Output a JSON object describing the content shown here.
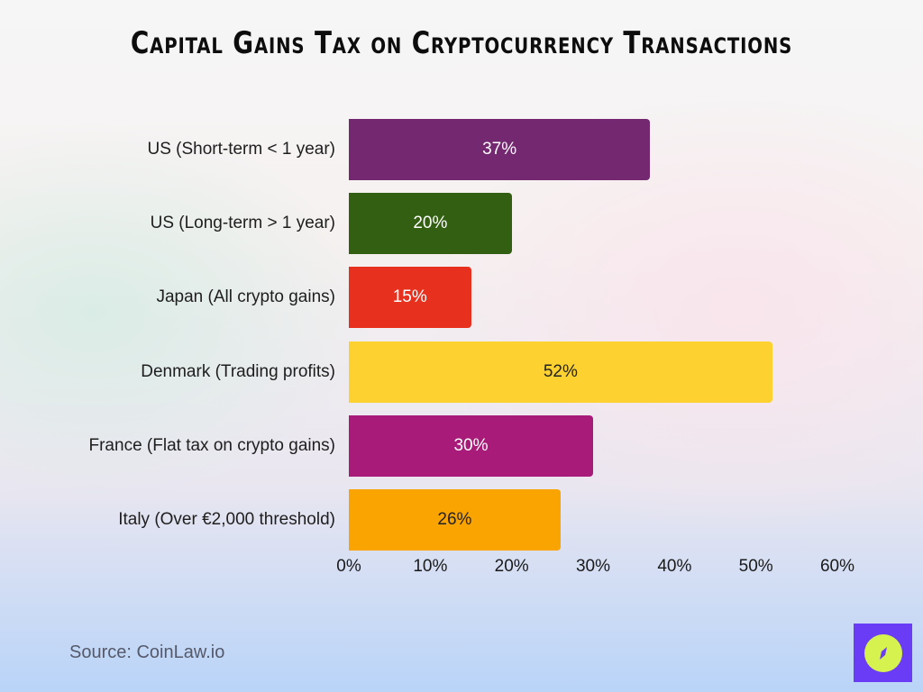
{
  "title": "Capital Gains Tax on Cryptocurrency Transactions",
  "source": "Source: CoinLaw.io",
  "logo_icon": "compass-icon",
  "chart_data": {
    "type": "bar",
    "orientation": "horizontal",
    "title": "Capital Gains Tax on Cryptocurrency Transactions",
    "xlabel": "",
    "ylabel": "",
    "categories": [
      "US (Short-term < 1 year)",
      "US (Long-term > 1 year)",
      "Japan (All crypto gains)",
      "Denmark (Trading profits)",
      "France (Flat tax on crypto gains)",
      "Italy (Over €2,000 threshold)"
    ],
    "values": [
      37,
      20,
      15,
      52,
      30,
      26
    ],
    "value_labels": [
      "37%",
      "20%",
      "15%",
      "52%",
      "30%",
      "26%"
    ],
    "colors": [
      "#732870",
      "#335f12",
      "#e8301f",
      "#fdd230",
      "#a81b78",
      "#faa402"
    ],
    "label_colors": [
      "#ffffff",
      "#ffffff",
      "#ffffff",
      "#222222",
      "#ffffff",
      "#222222"
    ],
    "xlim": [
      0,
      60
    ],
    "x_ticks": [
      "0%",
      "10%",
      "20%",
      "30%",
      "40%",
      "50%",
      "60%"
    ],
    "grid": false,
    "legend": "none"
  }
}
